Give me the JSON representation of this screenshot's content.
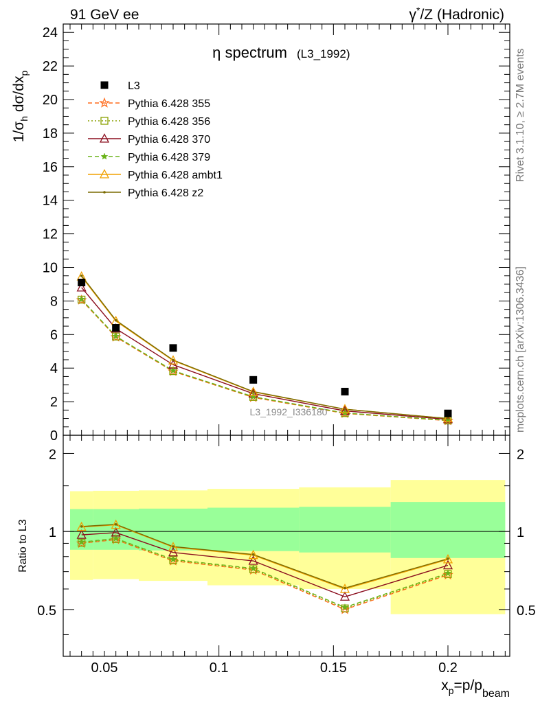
{
  "header": {
    "left": "91 GeV ee",
    "right_prefix": "γ",
    "right_sup": "*",
    "right_rest": "/Z (Hadronic)"
  },
  "side": {
    "rivet": "Rivet 3.1.10, ≥ 2.7M events",
    "mcplots": "mcplots.cern.ch [arXiv:1306.3436]"
  },
  "chart_data": [
    {
      "type": "line",
      "title_main": "η spectrum",
      "title_ref": "(L3_1992)",
      "ylabel": "1/σ_h dσ/dx_p",
      "ylabel_parts": {
        "a": "1/σ",
        "a_sub": "h",
        "b": " dσ/dx",
        "b_sub": "p"
      },
      "watermark": "L3_1992_I336180",
      "xlim": [
        0.032,
        0.227
      ],
      "ylim": [
        0,
        24.5
      ],
      "yticks": [
        0,
        2,
        4,
        6,
        8,
        10,
        12,
        14,
        16,
        18,
        20,
        22,
        24
      ],
      "x": [
        0.04,
        0.055,
        0.08,
        0.115,
        0.155,
        0.2
      ],
      "series": [
        {
          "name": "L3",
          "marker": "square",
          "color": "#000000",
          "values": [
            9.1,
            6.4,
            5.2,
            3.3,
            2.6,
            1.3
          ]
        },
        {
          "name": "Pythia 6.428 355",
          "marker": "star",
          "color": "#ff6a1a",
          "dash": "6,4",
          "values": [
            8.05,
            5.85,
            3.8,
            2.25,
            1.3,
            0.87
          ]
        },
        {
          "name": "Pythia 6.428 356",
          "marker": "open-square",
          "color": "#8aa000",
          "dash": "2,3",
          "values": [
            8.08,
            5.88,
            3.82,
            2.28,
            1.32,
            0.88
          ]
        },
        {
          "name": "Pythia 6.428 370",
          "marker": "open-triangle",
          "color": "#8b0e1e",
          "values": [
            8.8,
            6.35,
            4.2,
            2.48,
            1.45,
            0.95
          ]
        },
        {
          "name": "Pythia 6.428 379",
          "marker": "star-filled",
          "color": "#6ab31a",
          "dash": "6,4",
          "values": [
            8.1,
            5.9,
            3.85,
            2.3,
            1.33,
            0.89
          ]
        },
        {
          "name": "Pythia 6.428 ambt1",
          "marker": "open-triangle",
          "color": "#f0a000",
          "values": [
            9.45,
            6.8,
            4.45,
            2.58,
            1.55,
            1.0
          ]
        },
        {
          "name": "Pythia 6.428 z2",
          "marker": "dot",
          "color": "#7a6a00",
          "values": [
            9.5,
            6.85,
            4.48,
            2.6,
            1.55,
            1.0
          ]
        }
      ]
    },
    {
      "type": "line",
      "ylabel": "Ratio to L3",
      "xlabel_parts": {
        "a": "x",
        "a_sub": "p",
        "b": "=p/p",
        "b_sub": "beam"
      },
      "xticks": [
        0.05,
        0.1,
        0.15,
        0.2
      ],
      "xtick_labels": [
        "0.05",
        "0.1",
        "0.15",
        "0.2"
      ],
      "ylim": [
        0.33,
        2.35
      ],
      "yticks": [
        0.5,
        1,
        2
      ],
      "ytick_labels": [
        "0.5",
        "1",
        "2"
      ],
      "bands": [
        {
          "x0": 0.035,
          "x1": 0.045,
          "stat_lo": 0.85,
          "stat_hi": 1.22,
          "tot_lo": 0.65,
          "tot_hi": 1.43
        },
        {
          "x0": 0.045,
          "x1": 0.065,
          "stat_lo": 0.85,
          "stat_hi": 1.22,
          "tot_lo": 0.655,
          "tot_hi": 1.435
        },
        {
          "x0": 0.065,
          "x1": 0.095,
          "stat_lo": 0.845,
          "stat_hi": 1.225,
          "tot_lo": 0.645,
          "tot_hi": 1.44
        },
        {
          "x0": 0.095,
          "x1": 0.135,
          "stat_lo": 0.84,
          "stat_hi": 1.235,
          "tot_lo": 0.62,
          "tot_hi": 1.46
        },
        {
          "x0": 0.135,
          "x1": 0.175,
          "stat_lo": 0.83,
          "stat_hi": 1.245,
          "tot_lo": 0.6,
          "tot_hi": 1.48
        },
        {
          "x0": 0.175,
          "x1": 0.225,
          "stat_lo": 0.79,
          "stat_hi": 1.3,
          "tot_lo": 0.48,
          "tot_hi": 1.58
        }
      ],
      "x": [
        0.04,
        0.055,
        0.08,
        0.115,
        0.155,
        0.2
      ],
      "series": [
        {
          "name": "Pythia 6.428 355",
          "values": [
            0.9,
            0.93,
            0.77,
            0.71,
            0.5,
            0.68
          ]
        },
        {
          "name": "Pythia 6.428 356",
          "values": [
            0.905,
            0.935,
            0.775,
            0.715,
            0.505,
            0.685
          ]
        },
        {
          "name": "Pythia 6.428 370",
          "values": [
            0.97,
            0.99,
            0.83,
            0.77,
            0.56,
            0.74
          ]
        },
        {
          "name": "Pythia 6.428 379",
          "values": [
            0.91,
            0.94,
            0.78,
            0.72,
            0.51,
            0.69
          ]
        },
        {
          "name": "Pythia 6.428 ambt1",
          "values": [
            1.04,
            1.06,
            0.87,
            0.81,
            0.6,
            0.78
          ]
        },
        {
          "name": "Pythia 6.428 z2",
          "values": [
            1.045,
            1.065,
            0.875,
            0.815,
            0.605,
            0.785
          ]
        }
      ]
    }
  ]
}
